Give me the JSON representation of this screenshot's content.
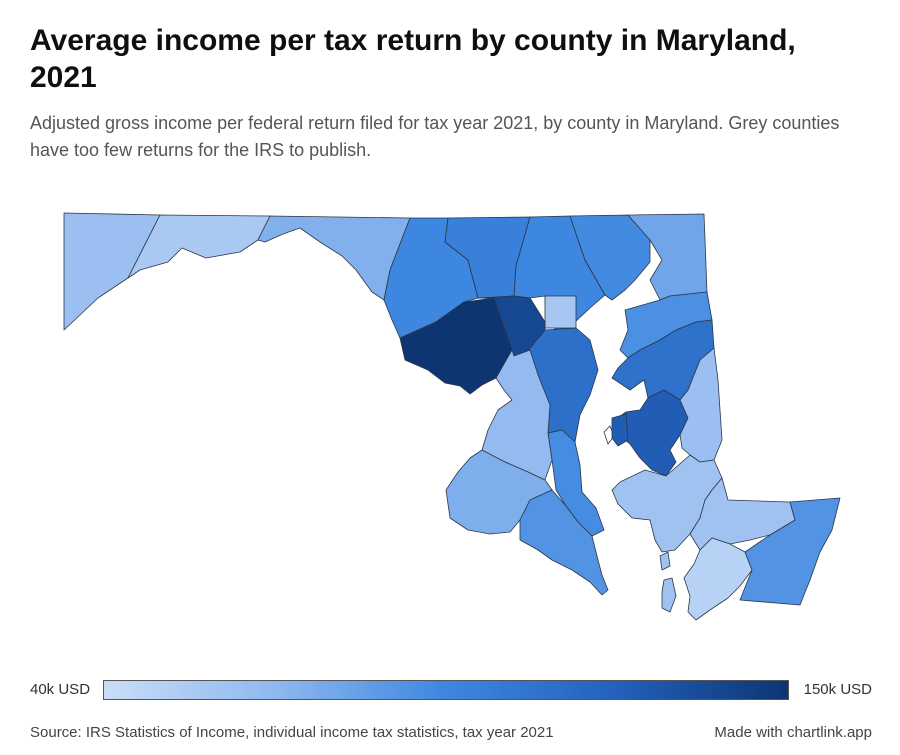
{
  "header": {
    "title": "Average income per tax return by county in Maryland, 2021",
    "subtitle": "Adjusted gross income per federal return filed for tax year 2021, by county in Maryland. Grey counties have too few returns for the IRS to publish."
  },
  "legend": {
    "min_label": "40k USD",
    "max_label": "150k USD",
    "min_value": 40,
    "max_value": 150,
    "ramp_colors": [
      "#c9ddf7",
      "#8fb8ef",
      "#3d87e0",
      "#2361bc",
      "#0d3572"
    ]
  },
  "counties": [
    {
      "id": "garrett",
      "value": 62
    },
    {
      "id": "allegany",
      "value": 55
    },
    {
      "id": "washington",
      "value": 72
    },
    {
      "id": "frederick",
      "value": 95
    },
    {
      "id": "carroll",
      "value": 100
    },
    {
      "id": "baltimore-county",
      "value": 95
    },
    {
      "id": "harford",
      "value": 93
    },
    {
      "id": "cecil",
      "value": 78
    },
    {
      "id": "baltimore-city",
      "value": 56
    },
    {
      "id": "montgomery",
      "value": 150
    },
    {
      "id": "howard",
      "value": 138
    },
    {
      "id": "anne-arundel",
      "value": 112
    },
    {
      "id": "prince-georges",
      "value": 65
    },
    {
      "id": "charles",
      "value": 73
    },
    {
      "id": "calvert",
      "value": 92
    },
    {
      "id": "st-marys",
      "value": 88
    },
    {
      "id": "kent",
      "value": 90
    },
    {
      "id": "queen-annes",
      "value": 110
    },
    {
      "id": "talbot",
      "value": 125
    },
    {
      "id": "caroline",
      "value": 62
    },
    {
      "id": "dorchester",
      "value": 60
    },
    {
      "id": "wicomico",
      "value": 60
    },
    {
      "id": "somerset",
      "value": 48
    },
    {
      "id": "worcester",
      "value": 88
    }
  ],
  "footer": {
    "source": "Source: IRS Statistics of Income, individual income tax statistics, tax year 2021",
    "credit": "Made with chartlink.app"
  }
}
